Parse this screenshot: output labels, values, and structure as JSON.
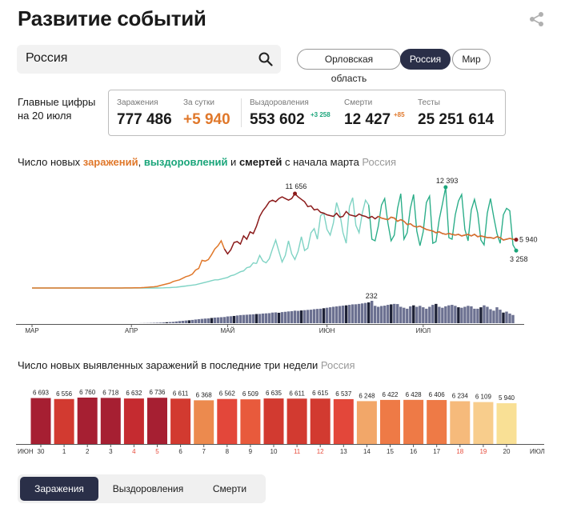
{
  "header": {
    "title": "Развитие событий",
    "share_icon": "share-icon"
  },
  "search": {
    "value": "Россия",
    "icon": "search-icon"
  },
  "region_pills": [
    {
      "label": "Орловская область",
      "active": false
    },
    {
      "label": "Россия",
      "active": true
    },
    {
      "label": "Мир",
      "active": false
    }
  ],
  "main_figures": {
    "label_line1": "Главные цифры",
    "label_line2": "на 20 июля",
    "infections_label": "Заражения",
    "infections_value": "777 486",
    "daily_label": "За сутки",
    "daily_value": "+5 940",
    "recovered_label": "Выздоровления",
    "recovered_value": "553 602",
    "recovered_delta": "+3 258",
    "deaths_label": "Смерти",
    "deaths_value": "12 427",
    "deaths_delta": "+85",
    "tests_label": "Тесты",
    "tests_value": "25 251 614"
  },
  "chart1": {
    "title_prefix": "Число новых ",
    "title_infections": "заражений",
    "title_comma": ", ",
    "title_recoveries": "выздоровлений",
    "title_and": " и ",
    "title_deaths": "смертей",
    "title_suffix": " с начала марта ",
    "title_region": "Россия",
    "colors": {
      "infections": "#e0782b",
      "infections_dark": "#8b1a1a",
      "recoveries": "#1aa57a",
      "recoveries_light": "#7fd3c4",
      "deaths": "#2a2f48"
    }
  },
  "chart_data": [
    {
      "type": "line",
      "x_labels": [
        "МАР",
        "АПР",
        "МАЙ",
        "ИЮН",
        "ИЮЛ"
      ],
      "series": [
        {
          "values": [
            0,
            0,
            0,
            0,
            0,
            0,
            0,
            0,
            0,
            0,
            0,
            0,
            0,
            0,
            0,
            0,
            0,
            0,
            0,
            0,
            0,
            0,
            0,
            0,
            0,
            0,
            1,
            2,
            3,
            5,
            8,
            12,
            18,
            25,
            40,
            60,
            90,
            120,
            150,
            200,
            300,
            400,
            500,
            600,
            800,
            900,
            1000,
            1200,
            1400,
            1500,
            1700,
            2200,
            2400,
            3400,
            3300,
            3500,
            4100,
            4800,
            5200,
            5800,
            4800,
            4200,
            4700,
            5600,
            5700,
            5400,
            6400,
            6000,
            6900,
            6700,
            7600,
            8800,
            9500,
            10000,
            10600,
            10800,
            10600,
            11000,
            11200,
            11000,
            10800,
            11000,
            11600,
            11200,
            10900,
            10600,
            10000,
            10100,
            9600,
            9700,
            9300,
            9200,
            9000,
            8900,
            8800,
            9200,
            8700,
            8800,
            9400,
            9000,
            8900,
            8800,
            9100,
            8900,
            8800,
            8600,
            8800,
            8500,
            8800,
            8600,
            8500,
            8400,
            8700,
            8600,
            8200,
            8400,
            8200,
            7800,
            7900,
            7600,
            7500,
            7600,
            7400,
            7200,
            7100,
            7000,
            6800,
            6900,
            6700,
            6600,
            6700,
            6600,
            6500,
            6600,
            6400,
            6500,
            6600,
            6400,
            6600,
            6300,
            6400,
            6300,
            6200,
            6200,
            6100,
            6300,
            6200,
            5900,
            6000,
            6100,
            6000,
            5940
          ]
        },
        {
          "values": [
            0,
            0,
            0,
            0,
            0,
            0,
            0,
            0,
            0,
            0,
            0,
            0,
            0,
            0,
            0,
            0,
            0,
            0,
            0,
            0,
            0,
            0,
            0,
            0,
            0,
            0,
            0,
            0,
            0,
            0,
            0,
            0,
            0,
            0,
            0,
            0,
            0,
            0,
            0,
            0,
            10,
            20,
            40,
            50,
            80,
            100,
            150,
            200,
            250,
            300,
            350,
            400,
            500,
            600,
            700,
            800,
            900,
            1000,
            1000,
            1100,
            1200,
            1300,
            1500,
            1600,
            1800,
            2000,
            2100,
            2500,
            2600,
            3100,
            3000,
            4000,
            3300,
            3100,
            3600,
            4800,
            5900,
            4500,
            3200,
            4000,
            5800,
            4200,
            3500,
            4500,
            6300,
            4600,
            4900,
            6800,
            7300,
            6000,
            8900,
            9200,
            7200,
            6500,
            8000,
            10500,
            9200,
            6800,
            5500,
            10000,
            11100,
            7700,
            6800,
            9200,
            10800,
            10200,
            6000,
            5800,
            7600,
            10200,
            11000,
            8000,
            5800,
            6500,
            9800,
            11600,
            6000,
            6800,
            9800,
            11500,
            7000,
            5200,
            6900,
            10500,
            11300,
            5500,
            5700,
            8400,
            10300,
            12393,
            6200,
            6000,
            9000,
            10700,
            11500,
            7200,
            5800,
            9600,
            10900,
            9200,
            5900,
            5300,
            9200,
            11000,
            8700,
            6700,
            5500,
            9000,
            9800,
            9500,
            5300,
            4600,
            10500,
            7000,
            6800,
            3258
          ]
        }
      ],
      "annotations": [
        "11 656",
        "12 393",
        "5 940",
        "3 258",
        "232",
        "85"
      ],
      "bars": {
        "values": [
          0,
          0,
          0,
          0,
          0,
          0,
          0,
          0,
          0,
          0,
          0,
          0,
          0,
          0,
          0,
          0,
          0,
          0,
          0,
          0,
          0,
          0,
          0,
          0,
          0,
          0,
          0,
          0,
          0,
          0,
          0,
          0,
          0,
          0,
          1,
          1,
          2,
          3,
          4,
          5,
          6,
          8,
          10,
          12,
          14,
          18,
          22,
          25,
          28,
          30,
          34,
          38,
          42,
          45,
          48,
          50,
          54,
          58,
          60,
          62,
          64,
          70,
          72,
          75,
          80,
          84,
          86,
          88,
          90,
          92,
          95,
          96,
          100,
          102,
          104,
          110,
          112,
          108,
          115,
          118,
          122,
          125,
          130,
          128,
          132,
          135,
          138,
          140,
          145,
          148,
          150,
          155,
          160,
          165,
          170,
          174,
          178,
          182,
          185,
          190,
          195,
          196,
          200,
          205,
          210,
          216,
          232,
          180,
          170,
          178,
          182,
          190,
          195,
          200,
          198,
          170,
          160,
          150,
          175,
          185,
          170,
          180,
          165,
          150,
          170,
          190,
          200,
          170,
          160,
          175,
          185,
          190,
          180,
          165,
          160,
          170,
          180,
          175,
          150,
          150,
          165,
          185,
          170,
          145,
          130,
          165,
          140,
          110,
          120,
          100,
          85
        ]
      }
    },
    {
      "type": "bar",
      "categories": [
        "30",
        "1",
        "2",
        "3",
        "4",
        "5",
        "6",
        "7",
        "8",
        "9",
        "10",
        "11",
        "12",
        "13",
        "14",
        "15",
        "16",
        "17",
        "18",
        "19",
        "20"
      ],
      "values": [
        6693,
        6556,
        6760,
        6718,
        6632,
        6736,
        6611,
        6368,
        6562,
        6509,
        6635,
        6611,
        6615,
        6537,
        6248,
        6422,
        6428,
        6406,
        6234,
        6109,
        5940
      ],
      "value_labels": [
        "6 693",
        "6 556",
        "6 760",
        "6 718",
        "6 632",
        "6 736",
        "6 611",
        "6 368",
        "6 562",
        "6 509",
        "6 635",
        "6 611",
        "6 615",
        "6 537",
        "6 248",
        "6 422",
        "6 428",
        "6 406",
        "6 234",
        "6 109",
        "5 940"
      ],
      "colors": [
        "#a61f32",
        "#d23a30",
        "#a61f32",
        "#a61f32",
        "#c52b30",
        "#a61f32",
        "#d23a30",
        "#ec8a4e",
        "#e3473a",
        "#e85a3c",
        "#d23a30",
        "#d23a30",
        "#d23a30",
        "#e3473a",
        "#f2a769",
        "#ee7a46",
        "#ee7a46",
        "#ee7a46",
        "#f6ba7b",
        "#f8cd8c",
        "#f9e095"
      ],
      "weekend_color": "#e74c3c",
      "weekend_indices": [
        4,
        5,
        11,
        12,
        18,
        19
      ],
      "x_start_label": "ИЮН",
      "x_end_label": "ИЮЛ"
    }
  ],
  "chart2": {
    "title": "Число новых выявленных заражений в последние три недели",
    "region": "Россия"
  },
  "tabs": [
    {
      "label": "Заражения",
      "active": true
    },
    {
      "label": "Выздоровления",
      "active": false
    },
    {
      "label": "Смерти",
      "active": false
    }
  ]
}
